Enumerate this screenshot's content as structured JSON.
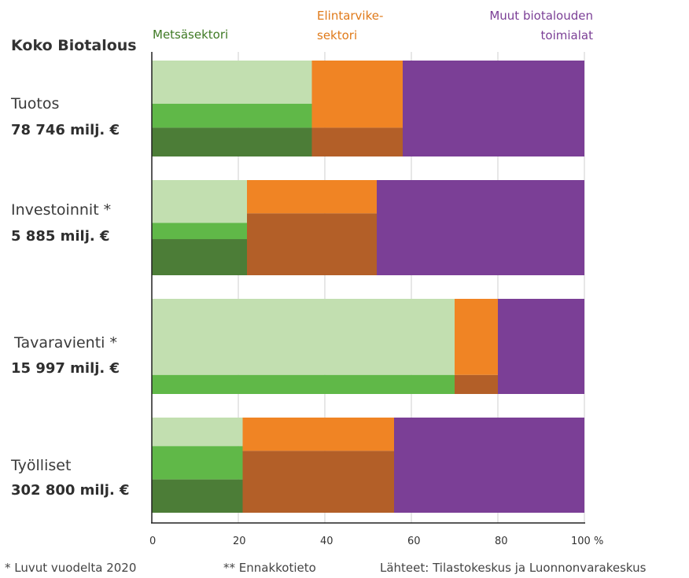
{
  "chart_data": {
    "type": "bar",
    "stacked": true,
    "orientation": "horizontal",
    "title": "Koko Biotalous",
    "categories": [
      {
        "label": "Tuotos",
        "value_label": "78 746 milj. €"
      },
      {
        "label": "Investoinnit *",
        "value_label": "5 885 milj. €"
      },
      {
        "label": "Tavaravienti *",
        "value_label": "15 997 milj. €"
      },
      {
        "label": "Työlliset",
        "value_label": "302 800 milj. €"
      }
    ],
    "series": [
      {
        "name": "Metsäsektori",
        "color": "#4c7d37",
        "values": [
          37,
          22,
          70,
          21
        ]
      },
      {
        "name": "Elintarvike-sektori",
        "color": "#f08424",
        "values": [
          21,
          30,
          10,
          35
        ]
      },
      {
        "name": "Muut biotalouden toimialat",
        "color": "#7b3f96",
        "values": [
          42,
          48,
          20,
          44
        ]
      }
    ],
    "forest_sub_shades": [
      "#c2dfb0",
      "#60b848",
      "#4c7d37"
    ],
    "forest_sub_fractions": [
      [
        0.45,
        0.25,
        0.3
      ],
      [
        0.45,
        0.17,
        0.38
      ],
      [
        0.8,
        0.2,
        0.0
      ],
      [
        0.3,
        0.35,
        0.35
      ]
    ],
    "food_sub_shades": [
      "#f08424",
      "#b35f28"
    ],
    "food_sub_fractions": [
      [
        0.7,
        0.3
      ],
      [
        0.35,
        0.65
      ],
      [
        0.8,
        0.2
      ],
      [
        0.35,
        0.65
      ]
    ],
    "x_ticks": [
      "0",
      "20",
      "40",
      "60",
      "80",
      "100 %"
    ],
    "xlim": [
      0,
      100
    ],
    "grid": true
  },
  "legend": {
    "forest": "Metsäsektori",
    "food_line1": "Elintarvike-",
    "food_line2": "sektori",
    "other_line1": "Muut biotalouden",
    "other_line2": "toimialat"
  },
  "colors": {
    "forest_text": "#3f7a24",
    "food_text": "#e07a1a",
    "other_text": "#7b3f96"
  },
  "footer": {
    "note1": "* Luvut vuodelta 2020",
    "note2": "** Ennakkotieto",
    "sources": "Lähteet: Tilastokeskus ja Luonnonvarakeskus"
  }
}
